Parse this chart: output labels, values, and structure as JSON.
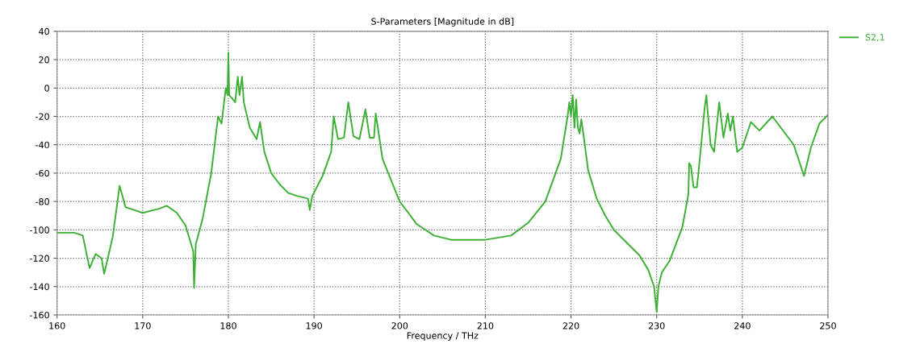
{
  "chart_data": {
    "type": "line",
    "title": "S-Parameters [Magnitude in dB]",
    "xlabel": "Frequency / THz",
    "xlim": [
      160,
      250
    ],
    "xticks": [
      160,
      170,
      180,
      190,
      200,
      210,
      220,
      230,
      240,
      250
    ],
    "ylim": [
      -160,
      40
    ],
    "yticks": [
      -160,
      -140,
      -120,
      -100,
      -80,
      -60,
      -40,
      -20,
      0,
      20,
      40
    ],
    "grid": true,
    "legend": "top right",
    "series": [
      {
        "name": "S2,1",
        "color": "#3cb035",
        "x": [
          160,
          162,
          163,
          163.8,
          164.5,
          165.2,
          165.5,
          166.5,
          167.3,
          168,
          170,
          172,
          172.8,
          174,
          175,
          175.9,
          176,
          176.2,
          177,
          178,
          178.5,
          178.8,
          179.2,
          179.7,
          179.9,
          180,
          180.1,
          180.4,
          180.8,
          181.1,
          181.3,
          181.6,
          181.8,
          182.5,
          183.3,
          183.7,
          184.2,
          185,
          186,
          187,
          188,
          189.3,
          189.5,
          189.8,
          191,
          192,
          192.3,
          192.8,
          193.5,
          194,
          194.6,
          195.3,
          196,
          196.5,
          197,
          197.2,
          198,
          200,
          202,
          204,
          206,
          210,
          213,
          215,
          217,
          218.8,
          219.6,
          219.8,
          220,
          220.2,
          220.4,
          220.6,
          220.8,
          221,
          221.2,
          221.5,
          222,
          223,
          224,
          225,
          227,
          228,
          229,
          229.7,
          230,
          230.2,
          230.6,
          231.5,
          233,
          233.7,
          233.8,
          234,
          234.3,
          234.7,
          235.2,
          235.5,
          235.6,
          235.8,
          236,
          236.3,
          236.7,
          237.3,
          237.8,
          238.3,
          238.6,
          238.9,
          239.1,
          239.4,
          240,
          241,
          242,
          243.5,
          245,
          246,
          247.2,
          248,
          249,
          250
        ],
        "values": [
          -102,
          -102,
          -104,
          -127,
          -117,
          -120,
          -131,
          -105,
          -69,
          -84,
          -88,
          -85,
          -83,
          -88,
          -97,
          -115,
          -141,
          -110,
          -92,
          -60,
          -35,
          -20,
          -25,
          0,
          -5,
          25,
          -5,
          -7,
          -10,
          8,
          -5,
          8,
          -10,
          -28,
          -36,
          -24,
          -45,
          -60,
          -68,
          -74,
          -76,
          -78,
          -86,
          -76,
          -62,
          -45,
          -20,
          -36,
          -35,
          -10,
          -34,
          -36,
          -15,
          -35,
          -35,
          -18,
          -50,
          -80,
          -96,
          -104,
          -107,
          -107,
          -104,
          -95,
          -80,
          -50,
          -20,
          -10,
          -20,
          -5,
          -28,
          -8,
          -28,
          -32,
          -22,
          -35,
          -58,
          -78,
          -90,
          -100,
          -112,
          -118,
          -128,
          -140,
          -158,
          -140,
          -130,
          -122,
          -98,
          -75,
          -53,
          -55,
          -70,
          -70,
          -40,
          -20,
          -14,
          -5,
          -20,
          -40,
          -45,
          -10,
          -35,
          -18,
          -30,
          -20,
          -30,
          -45,
          -42,
          -24,
          -30,
          -20,
          -32,
          -40,
          -62,
          -42,
          -25,
          -19
        ]
      }
    ]
  }
}
